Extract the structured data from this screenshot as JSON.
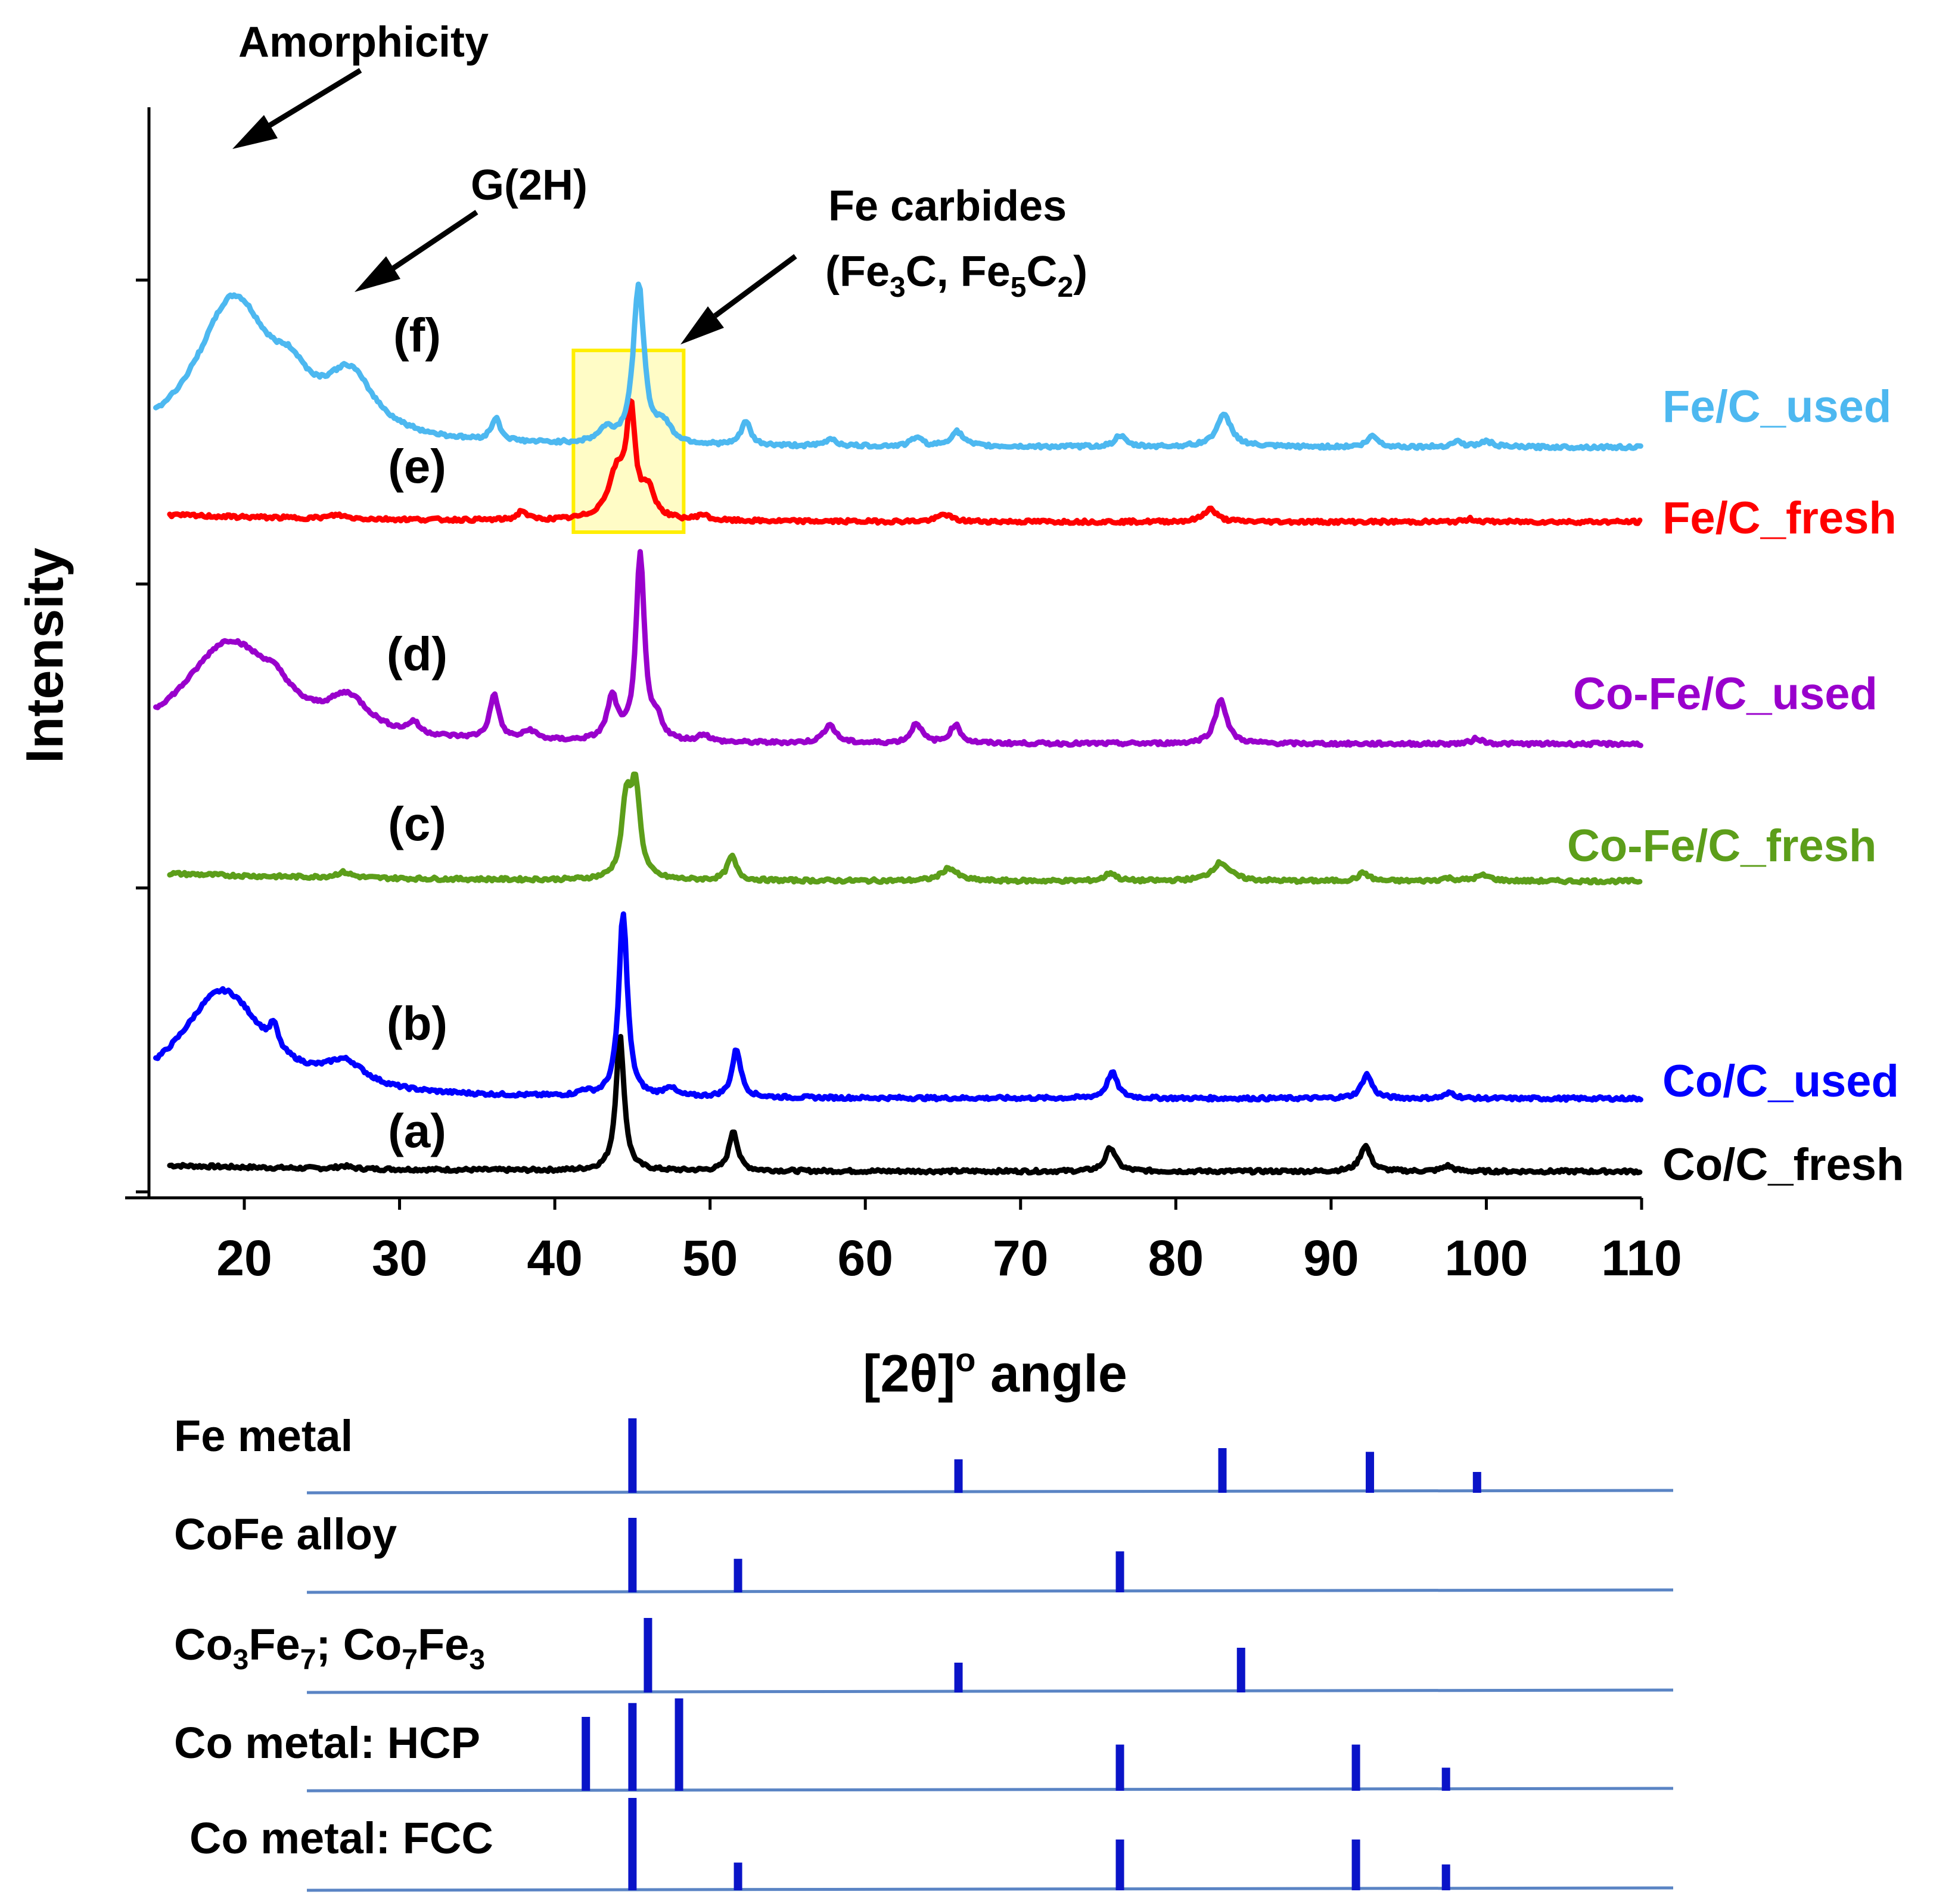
{
  "chart_data": {
    "type": "line",
    "xlabel": "[2θ]",
    "xlabel_sup": "o",
    "xlabel_suffix": " angle",
    "ylabel": "Intensity",
    "xlim": [
      14,
      110
    ],
    "xticks": [
      "20",
      "30",
      "40",
      "50",
      "60",
      "70",
      "80",
      "90",
      "100",
      "110"
    ],
    "series": [
      {
        "tag": "(a)",
        "name": "Co/C_fresh",
        "color": "#000000",
        "baseline": 0.3,
        "bg": 0.35,
        "bg_decay": 14,
        "peaks": [
          [
            26.4,
            0.15,
            0.5
          ],
          [
            44.2,
            7.3,
            0.32
          ],
          [
            51.5,
            2.2,
            0.33
          ],
          [
            75.8,
            1.3,
            0.4
          ],
          [
            92.2,
            1.4,
            0.4
          ],
          [
            97.5,
            0.3,
            0.4
          ]
        ]
      },
      {
        "tag": "(b)",
        "name": "Co/C_used",
        "color": "#0000ff",
        "baseline": 0.3,
        "bg": 0.0,
        "bg_decay": 10,
        "peaks": [
          [
            18.6,
            5.8,
            3.3
          ],
          [
            21.9,
            1.2,
            0.3
          ],
          [
            26.5,
            1.3,
            1.6
          ],
          [
            41.9,
            0.25,
            0.4
          ],
          [
            44.4,
            10.0,
            0.33
          ],
          [
            47.4,
            0.5,
            0.4
          ],
          [
            51.7,
            2.6,
            0.34
          ],
          [
            75.9,
            1.4,
            0.4
          ],
          [
            92.3,
            1.3,
            0.4
          ],
          [
            97.7,
            0.3,
            0.4
          ]
        ]
      },
      {
        "tag": "(c)",
        "name": "Co-Fe/C_fresh",
        "color": "#5c9e1a",
        "baseline": 0.3,
        "bg": 0.45,
        "bg_decay": 14,
        "peaks": [
          [
            26.4,
            0.3,
            0.6
          ],
          [
            44.6,
            4.0,
            0.35
          ],
          [
            45.2,
            4.8,
            0.35
          ],
          [
            51.4,
            1.3,
            0.35
          ],
          [
            65.4,
            0.7,
            0.6
          ],
          [
            75.8,
            0.45,
            0.4
          ],
          [
            82.9,
            1.0,
            0.7
          ],
          [
            92.1,
            0.45,
            0.4
          ],
          [
            97.5,
            0.15,
            0.5
          ],
          [
            99.8,
            0.3,
            0.6
          ]
        ]
      },
      {
        "tag": "(d)",
        "name": "Co-Fe/C_used",
        "color": "#9900cc",
        "baseline": 0.3,
        "bg": 0.0,
        "bg_decay": 10,
        "peaks": [
          [
            19.0,
            5.4,
            3.5
          ],
          [
            22.0,
            1.0,
            1.2
          ],
          [
            26.7,
            1.8,
            1.6
          ],
          [
            30.9,
            0.6,
            0.4
          ],
          [
            36.1,
            2.4,
            0.35
          ],
          [
            38.4,
            0.5,
            0.5
          ],
          [
            43.7,
            2.3,
            0.4
          ],
          [
            45.5,
            10.0,
            0.33
          ],
          [
            46.6,
            1.0,
            0.4
          ],
          [
            49.6,
            0.4,
            0.4
          ],
          [
            57.7,
            1.0,
            0.45
          ],
          [
            63.3,
            1.1,
            0.4
          ],
          [
            65.8,
            1.0,
            0.4
          ],
          [
            82.9,
            2.4,
            0.45
          ],
          [
            99.4,
            0.3,
            0.4
          ]
        ]
      },
      {
        "tag": "(e)",
        "name": "Fe/C_fresh",
        "color": "#ff0000",
        "baseline": 0.3,
        "bg": 0.4,
        "bg_decay": 14,
        "peaks": [
          [
            26.0,
            0.2,
            0.6
          ],
          [
            37.9,
            0.5,
            0.35
          ],
          [
            44.0,
            2.5,
            0.7
          ],
          [
            44.9,
            5.5,
            0.32
          ],
          [
            46.0,
            1.5,
            0.5
          ],
          [
            49.5,
            0.3,
            0.4
          ],
          [
            65.1,
            0.4,
            0.5
          ],
          [
            82.2,
            0.7,
            0.5
          ],
          [
            99.0,
            0.15,
            0.4
          ]
        ]
      },
      {
        "tag": "(f)",
        "name": "Fe/C_used",
        "color": "#4db8f0",
        "baseline": 0.3,
        "bg": 0.0,
        "bg_decay": 10,
        "peaks": [
          [
            19.3,
            7.8,
            2.9
          ],
          [
            23.0,
            1.8,
            1.4
          ],
          [
            26.8,
            3.2,
            1.9
          ],
          [
            36.2,
            1.2,
            0.35
          ],
          [
            43.3,
            0.7,
            0.6
          ],
          [
            45.4,
            8.6,
            0.42
          ],
          [
            47.0,
            1.0,
            0.6
          ],
          [
            52.3,
            1.3,
            0.35
          ],
          [
            57.8,
            0.4,
            0.4
          ],
          [
            63.3,
            0.5,
            0.4
          ],
          [
            65.9,
            0.8,
            0.5
          ],
          [
            76.4,
            0.6,
            0.4
          ],
          [
            83.1,
            1.7,
            0.6
          ],
          [
            92.7,
            0.6,
            0.4
          ],
          [
            98.1,
            0.3,
            0.4
          ],
          [
            100.0,
            0.3,
            0.5
          ]
        ]
      }
    ],
    "annotations": {
      "amorphicity": "Amorphicity",
      "g2h": "G(2H)",
      "fe_carbides": "Fe carbides",
      "fe_carbides_formula": [
        "(Fe",
        "3",
        "C, Fe",
        "5",
        "C",
        "2",
        ")"
      ],
      "highlight_range": [
        41.2,
        48.3
      ]
    },
    "reference_patterns": [
      {
        "label": "Fe metal",
        "lines": [
          [
            45.0,
            1.0
          ],
          [
            66.0,
            0.45
          ],
          [
            83.0,
            0.6
          ],
          [
            92.5,
            0.55
          ],
          [
            99.4,
            0.28
          ]
        ]
      },
      {
        "label": "CoFe alloy",
        "lines": [
          [
            45.0,
            1.0
          ],
          [
            51.8,
            0.45
          ],
          [
            76.4,
            0.55
          ]
        ]
      },
      {
        "label_parts": [
          "Co",
          "3",
          "Fe",
          "7",
          "; Co",
          "7",
          "Fe",
          "3"
        ],
        "lines": [
          [
            46.0,
            1.0
          ],
          [
            66.0,
            0.4
          ],
          [
            84.2,
            0.6
          ]
        ]
      },
      {
        "label": "Co metal: HCP",
        "lines": [
          [
            42.0,
            0.8
          ],
          [
            45.0,
            0.95
          ],
          [
            48.0,
            1.0
          ],
          [
            76.4,
            0.5
          ],
          [
            91.6,
            0.5
          ],
          [
            97.4,
            0.25
          ]
        ]
      },
      {
        "label": "Co metal: FCC",
        "lines": [
          [
            45.0,
            1.0
          ],
          [
            51.8,
            0.3
          ],
          [
            76.4,
            0.55
          ],
          [
            91.6,
            0.55
          ],
          [
            97.4,
            0.28
          ]
        ]
      }
    ]
  }
}
